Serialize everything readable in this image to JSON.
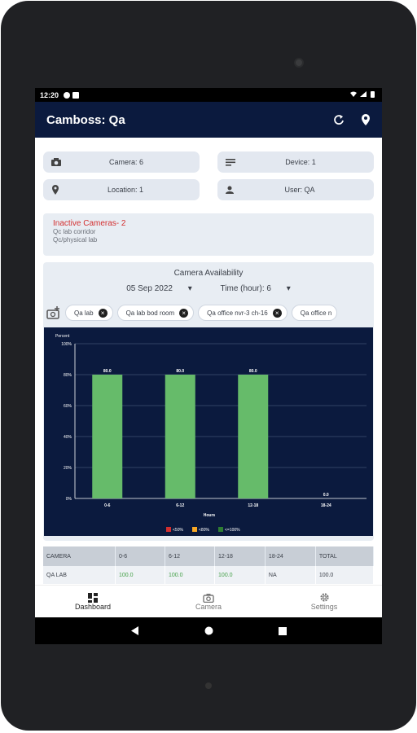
{
  "status_bar": {
    "time": "12:20"
  },
  "app_bar": {
    "title": "Camboss: Qa"
  },
  "summary": {
    "camera": "Camera: 6",
    "device": "Device: 1",
    "location": "Location: 1",
    "user": "User: QA"
  },
  "inactive": {
    "title": "Inactive Cameras- 2",
    "items": [
      "Qc lab corridor",
      "Qc/physical lab"
    ]
  },
  "availability": {
    "heading": "Camera Availability",
    "date": "05 Sep 2022",
    "time_filter": "Time (hour): 6",
    "camera_chips": [
      "Qa lab",
      "Qa lab bod room",
      "Qa office nvr-3 ch-16",
      "Qa office n"
    ]
  },
  "chart_data": {
    "type": "bar",
    "ylabel": "Percent",
    "xlabel": "Hours",
    "categories": [
      "0-6",
      "6-12",
      "12-18",
      "18-24"
    ],
    "values": [
      80.0,
      80.0,
      80.0,
      0.0
    ],
    "value_labels": [
      "80.0",
      "80.0",
      "80.0",
      "0.0"
    ],
    "ylim": [
      0,
      100
    ],
    "yticks": [
      "0%",
      "20%",
      "40%",
      "60%",
      "80%",
      "100%"
    ],
    "grid": true,
    "bar_color": "#66bb6a",
    "legend": [
      {
        "label": "<50%",
        "color": "#d32f2f"
      },
      {
        "label": "<80%",
        "color": "#f9a825"
      },
      {
        "label": "<=100%",
        "color": "#2e7d32"
      }
    ],
    "legend_position": "bottom"
  },
  "table": {
    "headers": [
      "CAMERA",
      "0-6",
      "6-12",
      "12-18",
      "18-24",
      "TOTAL"
    ],
    "rows": [
      [
        "QA LAB",
        "100.0",
        "100.0",
        "100.0",
        "NA",
        "100.0"
      ]
    ]
  },
  "bottom_nav": {
    "dashboard": "Dashboard",
    "camera": "Camera",
    "settings": "Settings"
  }
}
